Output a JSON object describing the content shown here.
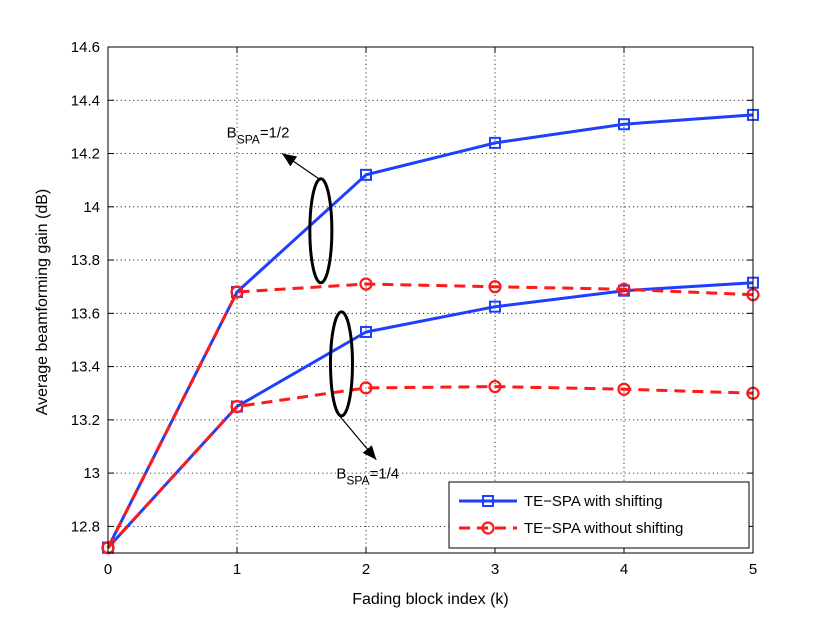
{
  "chart_data": {
    "type": "line",
    "xlabel": "Fading block index (k)",
    "ylabel": "Average beamforming gain (dB)",
    "xlim": [
      0,
      5
    ],
    "ylim": [
      12.7,
      14.6
    ],
    "xticks": [
      0,
      1,
      2,
      3,
      4,
      5
    ],
    "yticks": [
      12.8,
      13,
      13.2,
      13.4,
      13.6,
      13.8,
      14,
      14.2,
      14.4,
      14.6
    ],
    "xtick_labels": [
      "0",
      "1",
      "2",
      "3",
      "4",
      "5"
    ],
    "ytick_labels": [
      "12.8",
      "13",
      "13.2",
      "13.4",
      "13.6",
      "13.8",
      "14",
      "14.2",
      "14.4",
      "14.6"
    ],
    "grid": true,
    "legend_position": "bottom-right",
    "series": [
      {
        "name": "TE−SPA with shifting",
        "group": "B_SPA=1/2",
        "style": "solid",
        "marker": "square",
        "color": "#1f3fff",
        "x": [
          0,
          1,
          2,
          3,
          4,
          5
        ],
        "y": [
          12.72,
          13.68,
          14.12,
          14.24,
          14.31,
          14.345
        ]
      },
      {
        "name": "TE−SPA without shifting",
        "group": "B_SPA=1/2",
        "style": "dashed",
        "marker": "circle",
        "color": "#ff1a1a",
        "x": [
          0,
          1,
          2,
          3,
          4,
          5
        ],
        "y": [
          12.72,
          13.68,
          13.71,
          13.7,
          13.69,
          13.67
        ]
      },
      {
        "name": "TE−SPA with shifting",
        "group": "B_SPA=1/4",
        "style": "solid",
        "marker": "square",
        "color": "#1f3fff",
        "x": [
          0,
          1,
          2,
          3,
          4,
          5
        ],
        "y": [
          12.72,
          13.25,
          13.53,
          13.625,
          13.685,
          13.715
        ]
      },
      {
        "name": "TE−SPA without shifting",
        "group": "B_SPA=1/4",
        "style": "dashed",
        "marker": "circle",
        "color": "#ff1a1a",
        "x": [
          0,
          1,
          2,
          3,
          4,
          5
        ],
        "y": [
          12.72,
          13.25,
          13.32,
          13.325,
          13.315,
          13.3
        ]
      }
    ],
    "legend": [
      {
        "label": "TE−SPA with shifting",
        "style": "solid",
        "marker": "square",
        "color": "#1f3fff"
      },
      {
        "label": "TE−SPA without shifting",
        "style": "dashed",
        "marker": "circle",
        "color": "#ff1a1a"
      }
    ],
    "annotations": [
      {
        "base": "B",
        "sub": "SPA",
        "rest": "=1/2",
        "ellipse_center": [
          1.65,
          13.91
        ],
        "label_anchor": [
          0.92,
          14.26
        ],
        "arrow_tip": [
          1.35,
          14.2
        ]
      },
      {
        "base": "B",
        "sub": "SPA",
        "rest": "=1/4",
        "ellipse_center": [
          1.81,
          13.41
        ],
        "label_anchor": [
          1.77,
          12.98
        ],
        "arrow_tip": [
          2.08,
          13.05
        ]
      }
    ]
  }
}
